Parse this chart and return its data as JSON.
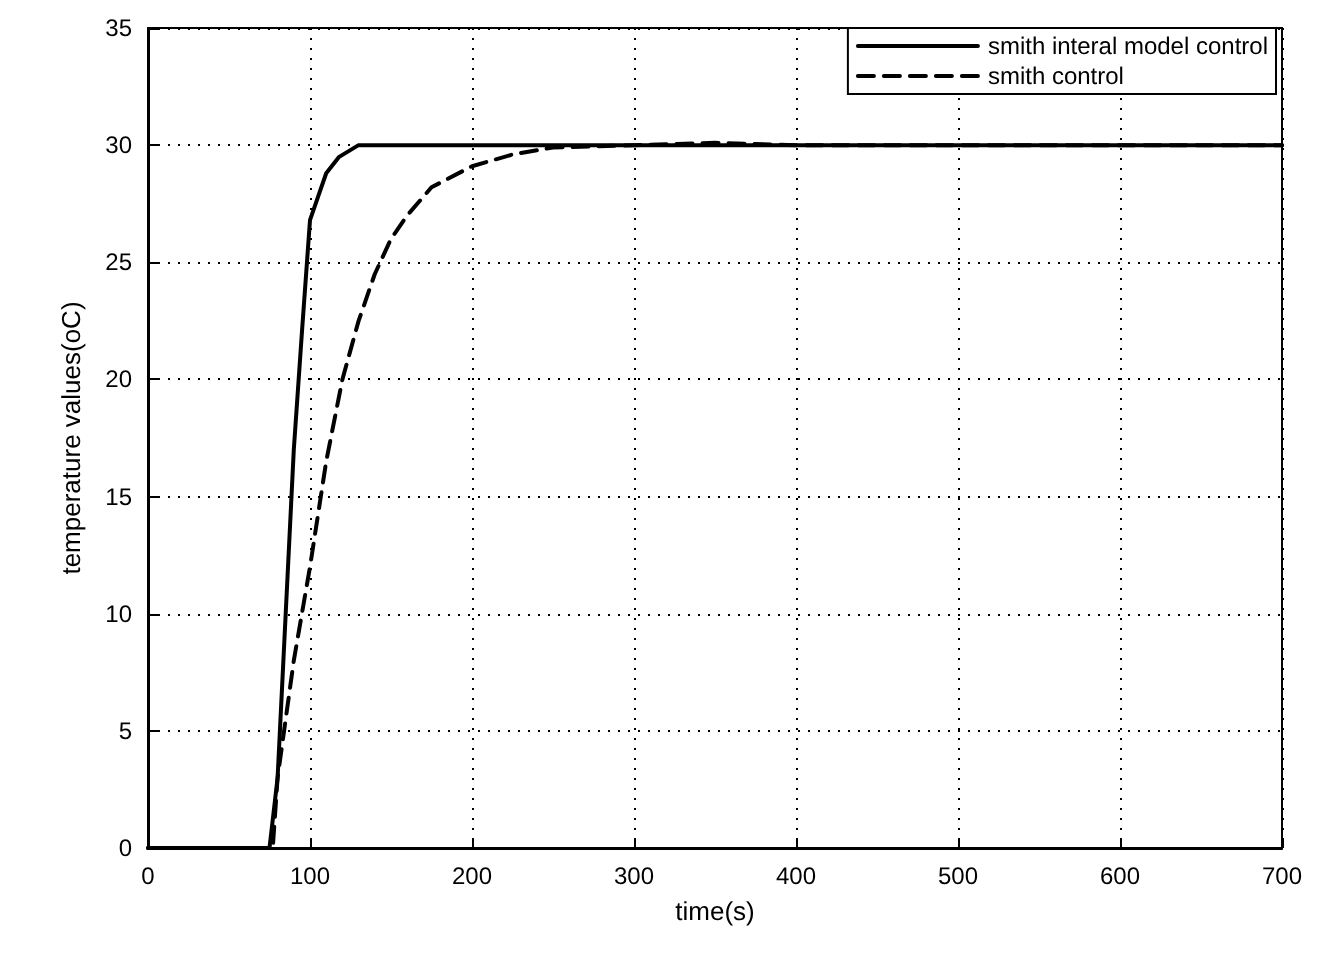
{
  "chart_data": {
    "type": "line",
    "xlabel": "time(s)",
    "ylabel": "temperature values(oC)",
    "xlim": [
      0,
      700
    ],
    "ylim": [
      0,
      35
    ],
    "xticks": [
      0,
      100,
      200,
      300,
      400,
      500,
      600,
      700
    ],
    "yticks": [
      0,
      5,
      10,
      15,
      20,
      25,
      30,
      35
    ],
    "grid": true,
    "legend": "top right",
    "marker": "none",
    "series": [
      {
        "name": "smith interal model control",
        "color": "#000000",
        "line_style": "solid",
        "x": [
          0,
          75,
          80,
          85,
          90,
          95,
          100,
          105,
          110,
          118,
          130,
          150,
          700
        ],
        "values": [
          0,
          0,
          3,
          10,
          17,
          22,
          26.8,
          27.8,
          28.8,
          29.5,
          30,
          30,
          30
        ]
      },
      {
        "name": "smith control",
        "color": "#000000",
        "line_style": "dashed",
        "x": [
          0,
          77,
          80,
          90,
          100,
          110,
          120,
          130,
          140,
          150,
          160,
          175,
          200,
          225,
          250,
          300,
          350,
          400,
          700
        ],
        "values": [
          0,
          0,
          3,
          8,
          12,
          16.5,
          20,
          22.5,
          24.5,
          26,
          27,
          28.2,
          29.1,
          29.6,
          29.9,
          30,
          30.1,
          30,
          30
        ]
      }
    ]
  }
}
